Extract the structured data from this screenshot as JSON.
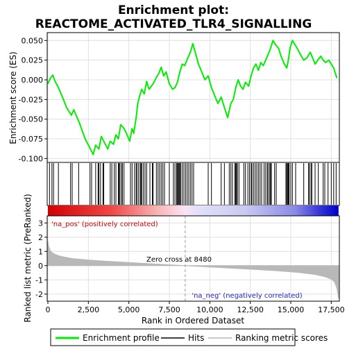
{
  "chart_data": {
    "type": "line",
    "title_line1": "Enrichment plot:",
    "title_line2": "REACTOME_ACTIVATED_TLR4_SIGNALLING",
    "xlabel": "Rank in Ordered Dataset",
    "ylabel_top": "Enrichment score (ES)",
    "ylabel_bottom": "Ranked list metric (PreRanked)",
    "xlim": [
      0,
      18000
    ],
    "ylim_top": [
      -0.105,
      0.06
    ],
    "ylim_bottom": [
      -2.5,
      3.5
    ],
    "x_ticks": [
      0,
      2500,
      5000,
      7500,
      10000,
      12500,
      15000,
      17500
    ],
    "x_tick_labels": [
      "0",
      "2,500",
      "5,000",
      "7,500",
      "10,000",
      "12,500",
      "15,000",
      "17,500"
    ],
    "y_ticks_top": [
      0.05,
      0.025,
      0.0,
      -0.025,
      -0.05,
      -0.075,
      -0.1
    ],
    "y_tick_labels_top": [
      "0.050",
      "0.025",
      "0.000",
      "-0.025",
      "-0.050",
      "-0.075",
      "-0.100"
    ],
    "y_ticks_bottom": [
      3,
      2,
      1,
      0,
      -1,
      -2
    ],
    "y_tick_labels_bottom": [
      "3",
      "2",
      "1",
      "0",
      "-1",
      "-2"
    ],
    "zero_cross": 8480,
    "zero_cross_label": "Zero cross at 8480",
    "pos_label": "'na_pos' (positively correlated)",
    "neg_label": "'na_neg' (negatively correlated)",
    "legend": [
      "Enrichment profile",
      "Hits",
      "Ranking metric scores"
    ],
    "colors": {
      "profile": "#00ee00",
      "hits": "#000000",
      "metric": "#b8b8b8",
      "pos_text": "#cc0000",
      "neg_text": "#2222cc",
      "grid": "#e0e0e0"
    },
    "enrichment_profile": {
      "x": [
        0,
        150,
        300,
        450,
        650,
        900,
        1150,
        1450,
        1600,
        1950,
        2300,
        2550,
        2800,
        2950,
        3150,
        3300,
        3450,
        3700,
        3850,
        4050,
        4200,
        4350,
        4500,
        4700,
        4850,
        5050,
        5200,
        5300,
        5450,
        5550,
        5650,
        5800,
        5950,
        6100,
        6250,
        6500,
        6700,
        6850,
        7000,
        7150,
        7300,
        7500,
        7700,
        7850,
        8000,
        8150,
        8300,
        8450,
        8600,
        8800,
        8950,
        9100,
        9300,
        9500,
        9700,
        9900,
        10100,
        10300,
        10500,
        10700,
        10900,
        11100,
        11300,
        11450,
        11600,
        11750,
        11900,
        12050,
        12200,
        12400,
        12550,
        12700,
        12850,
        13000,
        13150,
        13300,
        13450,
        13600,
        13750,
        13900,
        14050,
        14250,
        14400,
        14600,
        14750,
        14850,
        14950,
        15100,
        15250,
        15400,
        15600,
        15800,
        16000,
        16200,
        16350,
        16500,
        16700,
        16850,
        17000,
        17150,
        17350,
        17500,
        17650,
        17850
      ],
      "y": [
        -0.005,
        0.002,
        0.006,
        -0.002,
        -0.01,
        -0.022,
        -0.035,
        -0.045,
        -0.038,
        -0.055,
        -0.075,
        -0.085,
        -0.095,
        -0.083,
        -0.088,
        -0.072,
        -0.078,
        -0.088,
        -0.078,
        -0.082,
        -0.07,
        -0.075,
        -0.057,
        -0.062,
        -0.068,
        -0.078,
        -0.062,
        -0.068,
        -0.048,
        -0.03,
        -0.022,
        -0.012,
        -0.018,
        -0.002,
        -0.012,
        -0.005,
        0.003,
        0.008,
        0.016,
        0.005,
        0.01,
        -0.005,
        -0.012,
        -0.01,
        -0.003,
        0.01,
        0.02,
        0.018,
        0.026,
        0.035,
        0.046,
        0.035,
        0.02,
        0.01,
        0.0,
        0.005,
        -0.01,
        -0.02,
        -0.03,
        -0.022,
        -0.035,
        -0.048,
        -0.03,
        -0.025,
        -0.01,
        0.0,
        -0.008,
        -0.012,
        -0.003,
        -0.008,
        0.005,
        0.015,
        0.02,
        0.012,
        0.022,
        0.018,
        0.025,
        0.032,
        0.04,
        0.05,
        0.045,
        0.04,
        0.03,
        0.02,
        0.015,
        0.025,
        0.04,
        0.05,
        0.045,
        0.04,
        0.032,
        0.025,
        0.028,
        0.035,
        0.028,
        0.02,
        0.026,
        0.03,
        0.025,
        0.022,
        0.025,
        0.02,
        0.015,
        0.002
      ]
    },
    "hits": [
      100,
      250,
      350,
      650,
      1400,
      1500,
      1900,
      2600,
      2700,
      2950,
      3100,
      3150,
      3250,
      3400,
      3450,
      3850,
      3950,
      4100,
      4200,
      4350,
      4400,
      4450,
      4550,
      4600,
      4700,
      5100,
      5200,
      5350,
      5450,
      5500,
      5600,
      5700,
      5750,
      5800,
      5900,
      6000,
      6100,
      6300,
      6450,
      6500,
      6700,
      6800,
      6900,
      7000,
      7100,
      7200,
      7500,
      7750,
      7850,
      7950,
      8000,
      8050,
      8100,
      8150,
      8200,
      8300,
      8400,
      8500,
      8600,
      8700,
      8800,
      8900,
      9000,
      9900,
      10100,
      10700,
      10900,
      11200,
      11300,
      11400,
      11550,
      11600,
      11650,
      11700,
      11800,
      12100,
      12200,
      12350,
      12450,
      12550,
      12600,
      12700,
      12800,
      12900,
      13000,
      13100,
      13200,
      13350,
      13450,
      13550,
      13600,
      13700,
      13750,
      13800,
      14000,
      14100,
      14700,
      14750,
      14800,
      14850,
      14900,
      15000,
      15100,
      15300,
      15800,
      16100,
      16150,
      16250,
      16300,
      16500,
      16700,
      17000,
      17100,
      17300,
      17500,
      17650,
      17800
    ],
    "metric_curve": {
      "x": [
        0,
        50,
        150,
        300,
        600,
        1000,
        1500,
        2500,
        3500,
        5000,
        6500,
        8480,
        10000,
        12000,
        14000,
        15500,
        16500,
        17100,
        17500,
        17700,
        17850,
        17950
      ],
      "y": [
        1.7,
        1.35,
        1.05,
        0.88,
        0.72,
        0.6,
        0.5,
        0.4,
        0.32,
        0.22,
        0.12,
        0.0,
        -0.1,
        -0.22,
        -0.35,
        -0.48,
        -0.62,
        -0.78,
        -0.95,
        -1.15,
        -1.6,
        -2.3
      ]
    }
  }
}
